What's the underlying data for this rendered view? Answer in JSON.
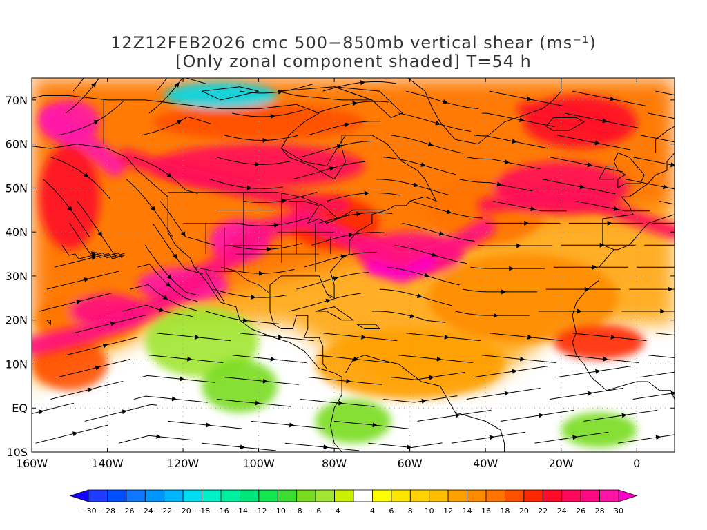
{
  "title": {
    "line1": "12Z12FEB2026 cmc 500−850mb vertical shear (ms⁻¹)",
    "line2": "[Only zonal component shaded] T=54 h"
  },
  "map": {
    "lon_range": [
      -160,
      10
    ],
    "lat_range": [
      -10,
      75
    ],
    "lat_labels": [
      "70N",
      "60N",
      "50N",
      "40N",
      "30N",
      "20N",
      "10N",
      "EQ",
      "10S"
    ],
    "lat_values": [
      70,
      60,
      50,
      40,
      30,
      20,
      10,
      0,
      -10
    ],
    "lon_labels": [
      "160W",
      "140W",
      "120W",
      "100W",
      "80W",
      "60W",
      "40W",
      "20W",
      "0"
    ],
    "lon_values": [
      -160,
      -140,
      -120,
      -100,
      -80,
      -60,
      -40,
      -20,
      0
    ],
    "colors": {
      "frame": "#000000",
      "coast": "#000000",
      "streamline": "#000000",
      "grid": "#9a9a9a"
    }
  },
  "colorbar": {
    "labels": [
      "−30",
      "−28",
      "−26",
      "−24",
      "−22",
      "−20",
      "−18",
      "−16",
      "−14",
      "−12",
      "−10",
      "−8",
      "−6",
      "−4",
      "4",
      "6",
      "8",
      "10",
      "12",
      "14",
      "16",
      "18",
      "20",
      "22",
      "24",
      "26",
      "28",
      "30"
    ],
    "colors": [
      "#1400ff",
      "#1e3cff",
      "#0050ff",
      "#0f78ff",
      "#0096ff",
      "#00b4ff",
      "#00dcf0",
      "#00f0c8",
      "#00f0a0",
      "#00e678",
      "#14e650",
      "#3cdc32",
      "#78dc1e",
      "#a0e632",
      "#c8f000",
      "#ffffff",
      "#ffff00",
      "#ffe600",
      "#ffd200",
      "#ffbe00",
      "#ffa000",
      "#ff8c00",
      "#ff7300",
      "#ff5000",
      "#ff2800",
      "#ff0a28",
      "#ff0a5a",
      "#ff0a82",
      "#ff14aa",
      "#ff00c8"
    ]
  },
  "fields": {
    "shear_blobs": [
      {
        "lon": -150,
        "lat": 65,
        "rx": 8,
        "ry": 5,
        "level": 28
      },
      {
        "lon": -150,
        "lat": 48,
        "rx": 8,
        "ry": 12,
        "level": 22
      },
      {
        "lon": -145,
        "lat": 20,
        "rx": 14,
        "ry": 6,
        "level": 16
      },
      {
        "lon": -150,
        "lat": 10,
        "rx": 10,
        "ry": 6,
        "level": 18
      },
      {
        "lon": -140,
        "lat": 22,
        "rx": 10,
        "ry": 4,
        "level": 26
      },
      {
        "lon": -120,
        "lat": 28,
        "rx": 12,
        "ry": 4,
        "level": 28
      },
      {
        "lon": -105,
        "lat": 38,
        "rx": 8,
        "ry": 5,
        "level": 28
      },
      {
        "lon": -100,
        "lat": 55,
        "rx": 28,
        "ry": 5,
        "level": 24
      },
      {
        "lon": -100,
        "lat": 65,
        "rx": 28,
        "ry": 4,
        "level": 18
      },
      {
        "lon": -80,
        "lat": 42,
        "rx": 12,
        "ry": 6,
        "level": 20
      },
      {
        "lon": -60,
        "lat": 35,
        "rx": 14,
        "ry": 5,
        "level": 26
      },
      {
        "lon": -40,
        "lat": 45,
        "rx": 16,
        "ry": 8,
        "level": 16
      },
      {
        "lon": -20,
        "lat": 50,
        "rx": 18,
        "ry": 6,
        "level": 24
      },
      {
        "lon": -15,
        "lat": 65,
        "rx": 15,
        "ry": 6,
        "level": 22
      },
      {
        "lon": -30,
        "lat": 25,
        "rx": 25,
        "ry": 10,
        "level": 14
      },
      {
        "lon": -10,
        "lat": 15,
        "rx": 12,
        "ry": 4,
        "level": 20
      },
      {
        "lon": -60,
        "lat": 10,
        "rx": 25,
        "ry": 8,
        "level": 12
      },
      {
        "lon": -115,
        "lat": 15,
        "rx": 15,
        "ry": 8,
        "level": -6
      },
      {
        "lon": -105,
        "lat": 5,
        "rx": 10,
        "ry": 6,
        "level": -8
      },
      {
        "lon": -75,
        "lat": -3,
        "rx": 10,
        "ry": 5,
        "level": -8
      },
      {
        "lon": -110,
        "lat": 71,
        "rx": 15,
        "ry": 3,
        "level": -20
      },
      {
        "lon": -10,
        "lat": -5,
        "rx": 10,
        "ry": 4,
        "level": -8
      }
    ]
  }
}
